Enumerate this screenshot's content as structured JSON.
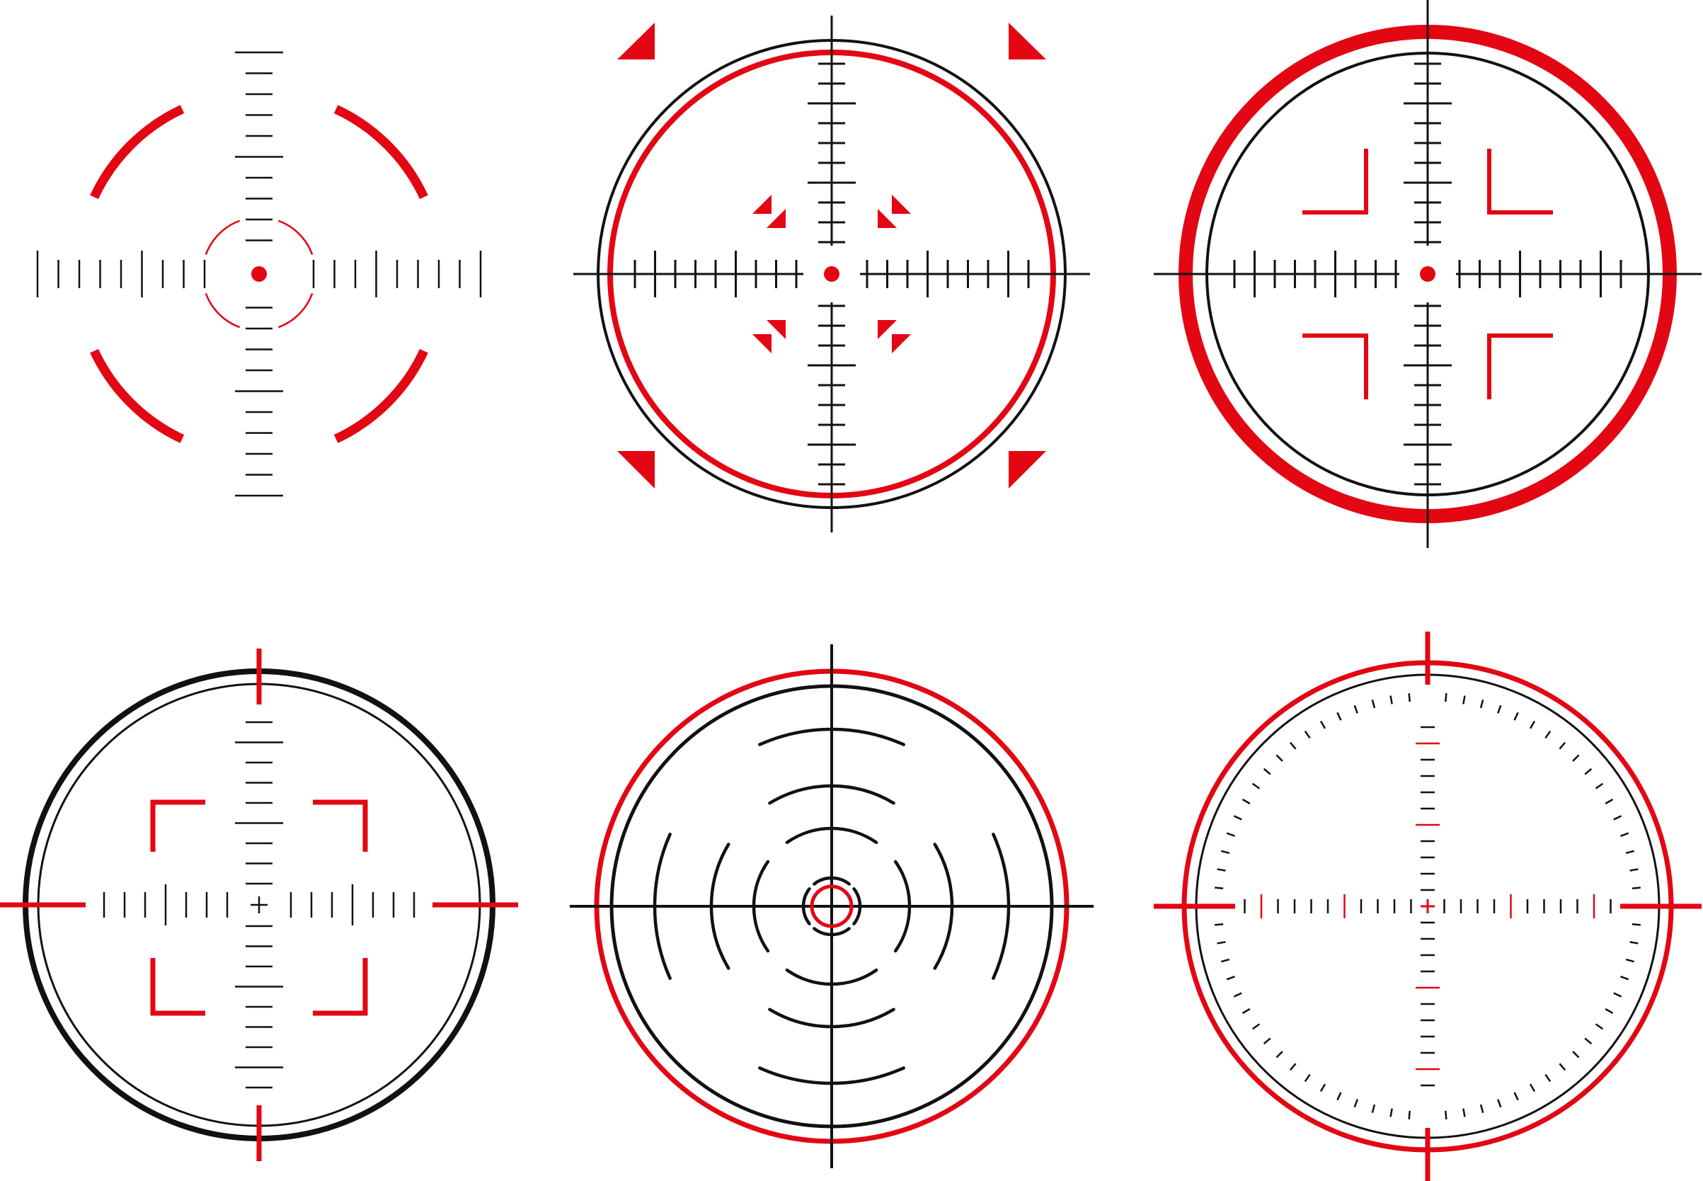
{
  "colors": {
    "red": "#e30613",
    "black": "#111111",
    "background": "#ffffff"
  },
  "reticles": [
    {
      "id": "reticle-1",
      "style": "broken-red-arcs-with-tick-cross"
    },
    {
      "id": "reticle-2",
      "style": "double-ring-with-red-triangles"
    },
    {
      "id": "reticle-3",
      "style": "thick-red-ring-with-corner-brackets"
    },
    {
      "id": "reticle-4",
      "style": "black-double-ring-with-red-frame"
    },
    {
      "id": "reticle-5",
      "style": "concentric-arcs-with-red-center-ring"
    },
    {
      "id": "reticle-6",
      "style": "dial-ring-with-red-ticks"
    }
  ]
}
